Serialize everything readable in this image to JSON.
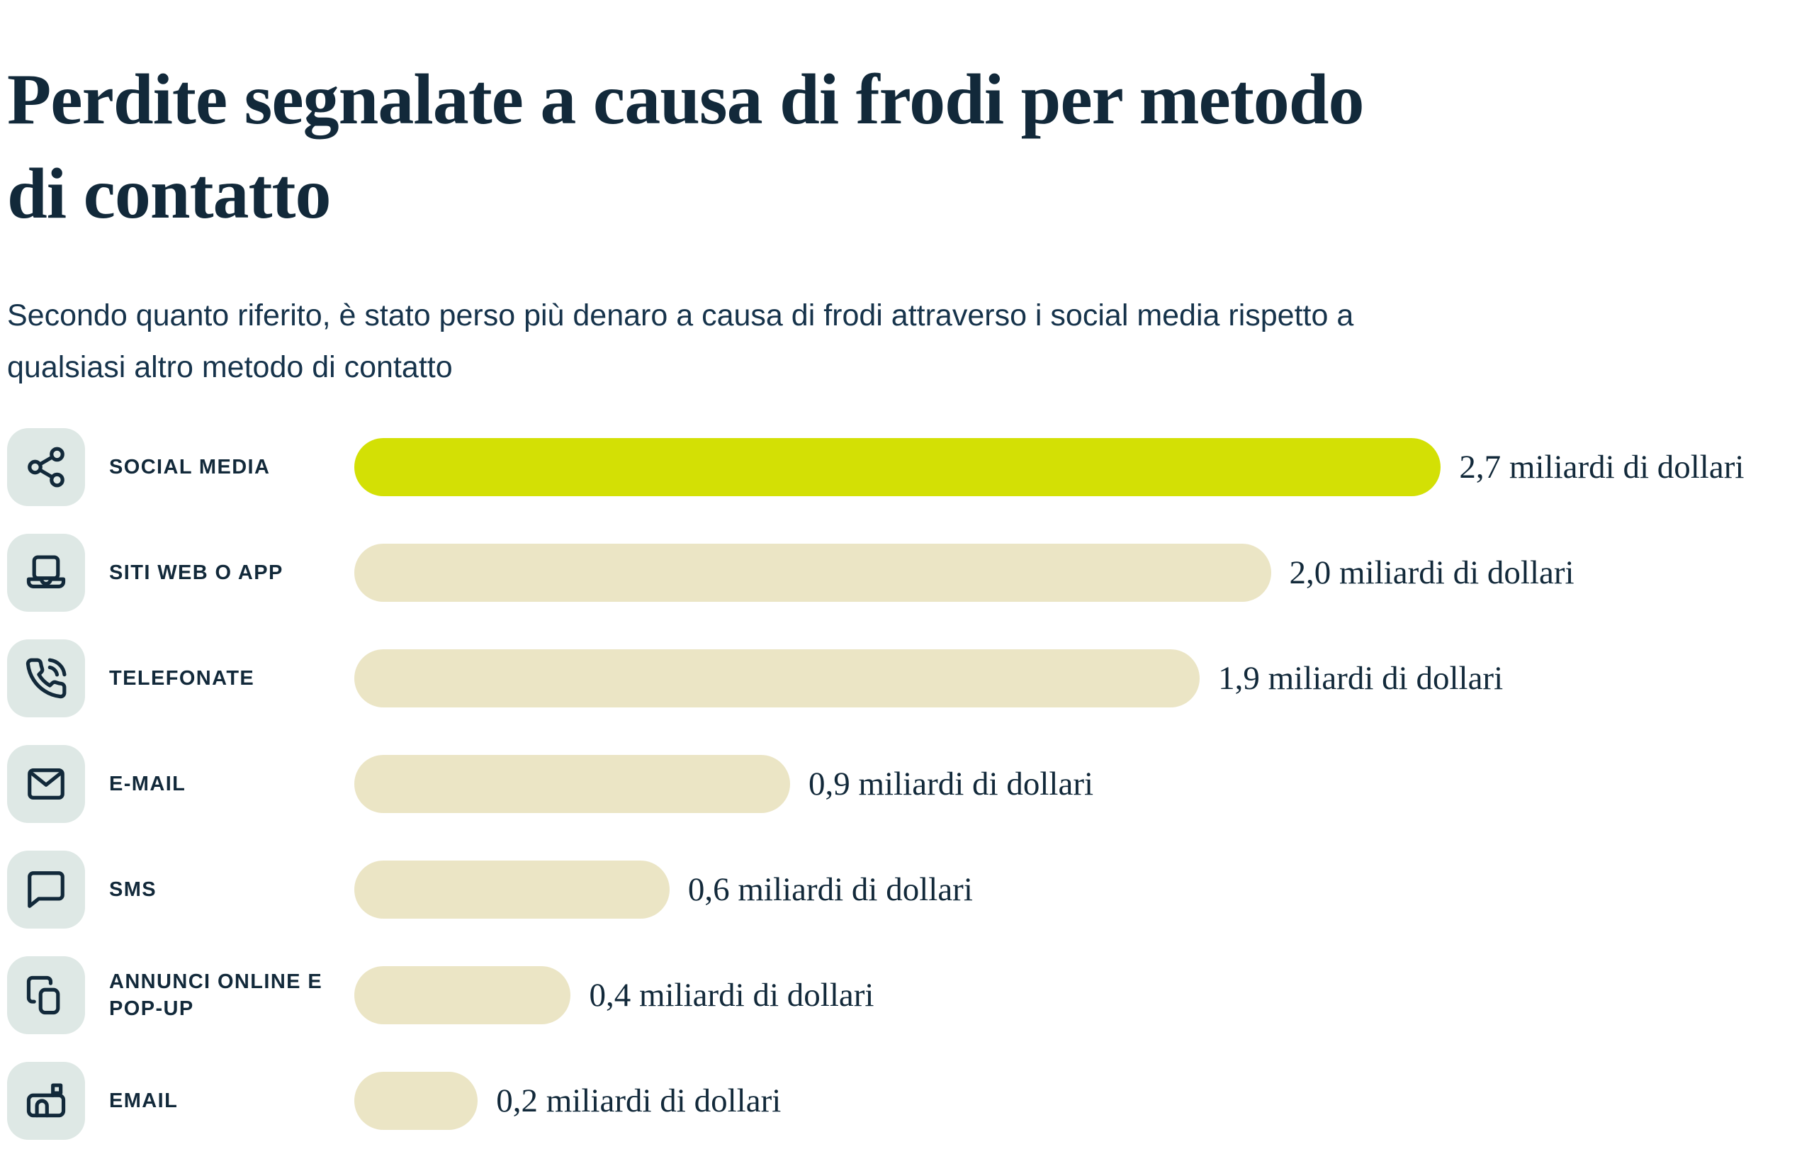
{
  "header": {
    "title_lines": [
      "Perdite segnalate a causa di frodi per metodo",
      "di contatto"
    ],
    "title": "Perdite segnalate a causa di frodi per metodo di contatto",
    "subtitle_lines": [
      "Secondo quanto riferito, è stato perso più denaro a causa di frodi attraverso i social media rispetto a",
      "qualsiasi altro metodo di contatto"
    ],
    "subtitle": "Secondo quanto riferito, è stato perso più denaro a causa di frodi attraverso i social media rispetto a qualsiasi altro metodo di contatto"
  },
  "colors": {
    "navy_text": "#12293A",
    "highlight_bar_green": "#D3E005",
    "bar_beige": "#EBE5C5",
    "icon_box_background": "#DEE8E5"
  },
  "chart_data": {
    "type": "bar",
    "orientation": "horizontal",
    "unit": "miliardi di dollari (USD)",
    "title": "Perdite segnalate a causa di frodi per metodo di contatto",
    "categories": [
      "SOCIAL MEDIA",
      "SITI WEB O APP",
      "TELEFONATE",
      "E-MAIL",
      "SMS",
      "ANNUNCI ONLINE E POP-UP",
      "EMAIL"
    ],
    "values": [
      2.7,
      2.0,
      1.9,
      0.9,
      0.6,
      0.4,
      0.2
    ],
    "highlight_index": 0,
    "legend": "none",
    "grid": false,
    "rows": [
      {
        "label": "SOCIAL MEDIA",
        "icon": "share-icon",
        "value": 2.7,
        "value_label": "2,7 miliardi di dollari",
        "bar_width_pct": 74.8,
        "highlight": true
      },
      {
        "label": "SITI WEB O APP",
        "icon": "laptop-icon",
        "value": 2.0,
        "value_label": "2,0 miliardi di dollari",
        "bar_width_pct": 63.1,
        "highlight": false
      },
      {
        "label": "TELEFONATE",
        "icon": "phone-call-icon",
        "value": 1.9,
        "value_label": "1,9 miliardi di dollari",
        "bar_width_pct": 58.2,
        "highlight": false
      },
      {
        "label": "E-MAIL",
        "icon": "envelope-icon",
        "value": 0.9,
        "value_label": "0,9 miliardi di dollari",
        "bar_width_pct": 30.0,
        "highlight": false
      },
      {
        "label": "SMS",
        "icon": "speech-bubble-icon",
        "value": 0.6,
        "value_label": "0,6 miliardi di dollari",
        "bar_width_pct": 21.7,
        "highlight": false
      },
      {
        "label": "ANNUNCI ONLINE E POP-UP",
        "icon": "copy-icon",
        "value": 0.4,
        "value_label": "0,4 miliardi di dollari",
        "bar_width_pct": 14.9,
        "highlight": false
      },
      {
        "label": "EMAIL",
        "icon": "mailbox-icon",
        "value": 0.2,
        "value_label": "0,2 miliardi di dollari",
        "bar_width_pct": 8.5,
        "highlight": false
      }
    ]
  }
}
